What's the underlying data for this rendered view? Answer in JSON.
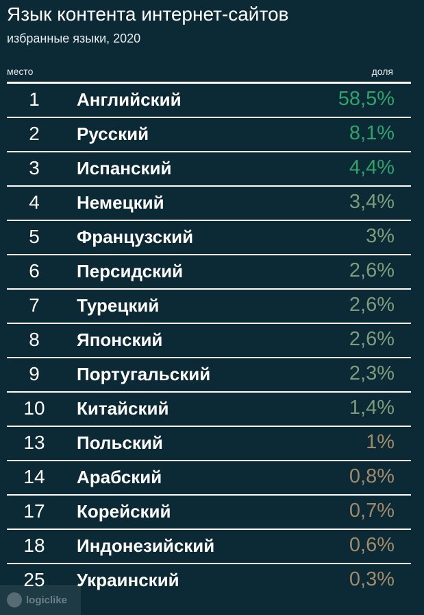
{
  "title": "Язык контента интернет-сайтов",
  "subtitle": "избранные языки, 2020",
  "column_headers": {
    "rank": "место",
    "share": "доля"
  },
  "logo_text": "logiclike",
  "colors": {
    "background": "#0b2a35",
    "text": "#ffffff",
    "share_high": "#2ea36a",
    "share_mid": "#7f9c7a",
    "share_low": "#a08a68"
  },
  "chart_data": {
    "type": "table",
    "title": "Язык контента интернет-сайтов",
    "subtitle": "избранные языки, 2020",
    "columns": [
      "место",
      "",
      "доля"
    ],
    "rows": [
      {
        "rank": "1",
        "language": "Английский",
        "share": "58,5%",
        "value": 58.5
      },
      {
        "rank": "2",
        "language": "Русский",
        "share": "8,1%",
        "value": 8.1
      },
      {
        "rank": "3",
        "language": "Испанский",
        "share": "4,4%",
        "value": 4.4
      },
      {
        "rank": "4",
        "language": "Немецкий",
        "share": "3,4%",
        "value": 3.4
      },
      {
        "rank": "5",
        "language": "Французский",
        "share": "3%",
        "value": 3.0
      },
      {
        "rank": "6",
        "language": "Персидский",
        "share": "2,6%",
        "value": 2.6
      },
      {
        "rank": "7",
        "language": "Турецкий",
        "share": "2,6%",
        "value": 2.6
      },
      {
        "rank": "8",
        "language": "Японский",
        "share": "2,6%",
        "value": 2.6
      },
      {
        "rank": "9",
        "language": "Португальский",
        "share": "2,3%",
        "value": 2.3
      },
      {
        "rank": "10",
        "language": "Китайский",
        "share": "1,4%",
        "value": 1.4
      },
      {
        "rank": "13",
        "language": "Польский",
        "share": "1%",
        "value": 1.0
      },
      {
        "rank": "14",
        "language": "Арабский",
        "share": "0,8%",
        "value": 0.8
      },
      {
        "rank": "17",
        "language": "Корейский",
        "share": "0,7%",
        "value": 0.7
      },
      {
        "rank": "18",
        "language": "Индонезийский",
        "share": "0,6%",
        "value": 0.6
      },
      {
        "rank": "25",
        "language": "Украинский",
        "share": "0,3%",
        "value": 0.3
      }
    ]
  }
}
